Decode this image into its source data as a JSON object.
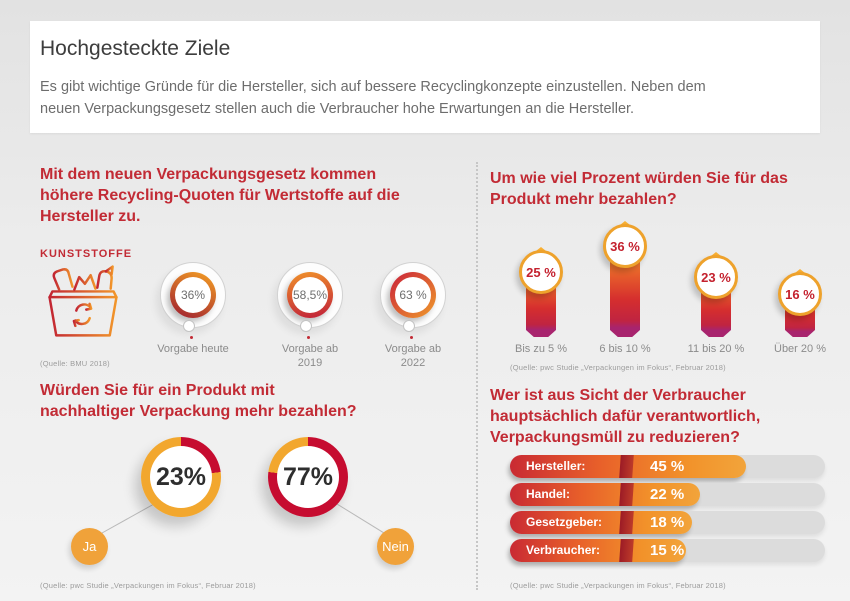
{
  "header": {
    "title": "Hochgesteckte Ziele",
    "intro": "Es gibt wichtige Gründe für die Hersteller, sich auf bessere Recyclingkonzepte einzustellen. Neben dem\nneuen Verpackungsgesetz stellen auch die Verbraucher hohe Erwartungen an die Hersteller."
  },
  "colors": {
    "heading_red": "#c22b35",
    "orange": "#f0a23a",
    "deep_red": "#c60c30",
    "magenta": "#a8246e",
    "track_gray": "#dcdcdc"
  },
  "icons": {
    "recycling_bin": "recycling-bin-icon"
  },
  "sections": {
    "quotas": {
      "heading": "Mit dem neuen Verpackungsgesetz kommen\nhöhere Recycling-Quoten für Wertstoffe auf die\nHersteller zu.",
      "category_label": "KUNSTSTOFFE",
      "source": "(Quelle: BMU 2018)"
    },
    "willingness": {
      "heading": "Würden Sie für ein Produkt mit\nnachhaltiger Verpackung mehr bezahlen?",
      "source": "(Quelle: pwc Studie „Verpackungen im Fokus“, Februar 2018)"
    },
    "amount": {
      "heading": "Um wie viel Prozent würden Sie für das\nProdukt mehr bezahlen?",
      "source": "(Quelle: pwc Studie „Verpackungen im Fokus“, Februar 2018)"
    },
    "responsibility": {
      "heading": "Wer ist aus Sicht der Verbraucher\nhauptsächlich dafür verantwortlich,\nVerpackungsmüll zu reduzieren?",
      "source": "(Quelle: pwc Studie „Verpackungen im Fokus“, Februar 2018)"
    }
  },
  "chart_data": [
    {
      "id": "recycling-quotas-plastics",
      "type": "donut",
      "title": "Mit dem neuen Verpackungsgesetz kommen höhere Recycling-Quoten für Wertstoffe auf die Hersteller zu.",
      "subtitle": "KUNSTSTOFFE",
      "categories": [
        "Vorgabe heute",
        "Vorgabe ab\n2019",
        "Vorgabe ab\n2022"
      ],
      "values": [
        36,
        58.5,
        63
      ],
      "value_labels": [
        "36%",
        "58,5%",
        "63 %"
      ],
      "ring_gradients": [
        [
          "#f6a223",
          "#9c1b31"
        ],
        [
          "#f0922a",
          "#c01f3a"
        ],
        [
          "#c9203a",
          "#ef9b2b"
        ]
      ],
      "source": "(Quelle: BMU 2018)"
    },
    {
      "id": "pay-more-yes-no",
      "type": "pie",
      "title": "Würden Sie für ein Produkt mit nachhaltiger Verpackung mehr bezahlen?",
      "categories": [
        "Ja",
        "Nein"
      ],
      "values": [
        23,
        77
      ],
      "value_labels": [
        "23%",
        "77%"
      ],
      "arc_colors": {
        "value_arc": "#c60c30",
        "rest_arc": "#f2a72e"
      },
      "source": "(Quelle: pwc Studie „Verpackungen im Fokus“, Februar 2018)"
    },
    {
      "id": "pay-more-amount",
      "type": "bar",
      "title": "Um wie viel Prozent würden Sie für das Produkt mehr bezahlen?",
      "categories": [
        "Bis zu 5 %",
        "6 bis 10 %",
        "11 bis 20 %",
        "Über 20 %"
      ],
      "values": [
        25,
        36,
        23,
        16
      ],
      "value_labels": [
        "25 %",
        "36 %",
        "23 %",
        "16 %"
      ],
      "source": "(Quelle: pwc Studie „Verpackungen im Fokus“, Februar 2018)"
    },
    {
      "id": "waste-reduction-responsibility",
      "type": "bar",
      "orientation": "horizontal",
      "title": "Wer ist aus Sicht der Verbraucher hauptsächlich dafür verantwortlich, Verpackungsmüll zu reduzieren?",
      "categories": [
        "Hersteller:",
        "Handel:",
        "Gesetzgeber:",
        "Verbraucher:"
      ],
      "values": [
        45,
        22,
        18,
        15
      ],
      "value_labels": [
        "45 %",
        "22 %",
        "18 %",
        "15 %"
      ],
      "source": "(Quelle: pwc Studie „Verpackungen im Fokus“, Februar 2018)"
    }
  ]
}
